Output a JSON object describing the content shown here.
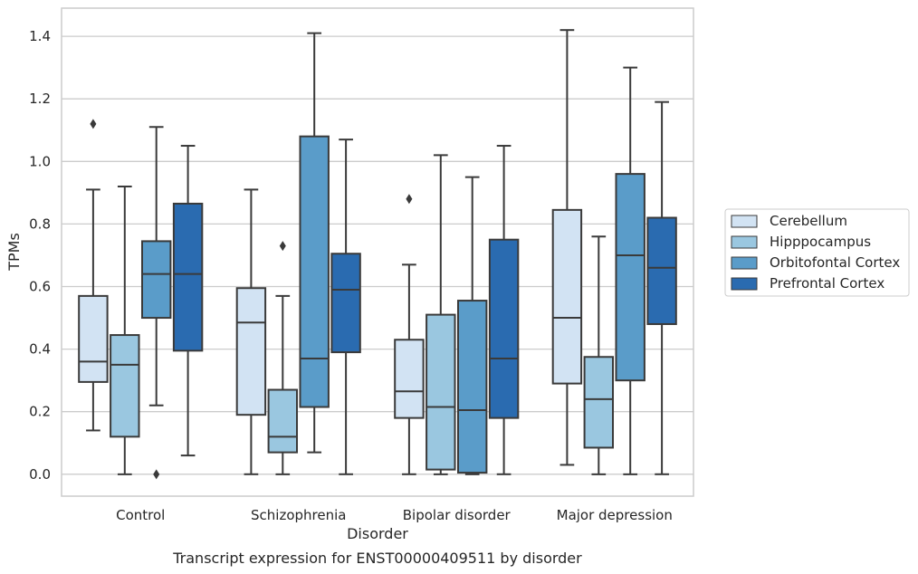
{
  "chart_data": {
    "type": "boxplot",
    "title": "Transcript expression for ENST00000409511 by disorder",
    "xlabel": "Disorder",
    "ylabel": "TPMs",
    "ylim": [
      -0.07,
      1.49
    ],
    "yticks": [
      "0.0",
      "0.2",
      "0.4",
      "0.6",
      "0.8",
      "1.0",
      "1.2",
      "1.4"
    ],
    "grid": true,
    "legend_position": "right",
    "categories": [
      "Control",
      "Schizophrenia",
      "Bipolar disorder",
      "Major depression"
    ],
    "series": [
      {
        "name": "Cerebellum",
        "color": "#d2e3f3",
        "boxes": [
          {
            "whislo": 0.14,
            "q1": 0.295,
            "med": 0.36,
            "q3": 0.57,
            "whishi": 0.91,
            "fliers": [
              1.12
            ]
          },
          {
            "whislo": 0.0,
            "q1": 0.19,
            "med": 0.485,
            "q3": 0.595,
            "whishi": 0.91,
            "fliers": []
          },
          {
            "whislo": 0.0,
            "q1": 0.18,
            "med": 0.265,
            "q3": 0.43,
            "whishi": 0.67,
            "fliers": [
              0.88
            ]
          },
          {
            "whislo": 0.03,
            "q1": 0.29,
            "med": 0.5,
            "q3": 0.845,
            "whishi": 1.42,
            "fliers": []
          }
        ]
      },
      {
        "name": "Hipppocampus",
        "color": "#9ac7e0",
        "boxes": [
          {
            "whislo": 0.0,
            "q1": 0.12,
            "med": 0.35,
            "q3": 0.445,
            "whishi": 0.92,
            "fliers": []
          },
          {
            "whislo": 0.0,
            "q1": 0.07,
            "med": 0.12,
            "q3": 0.27,
            "whishi": 0.57,
            "fliers": [
              0.73
            ]
          },
          {
            "whislo": 0.0,
            "q1": 0.015,
            "med": 0.215,
            "q3": 0.51,
            "whishi": 1.02,
            "fliers": []
          },
          {
            "whislo": 0.0,
            "q1": 0.085,
            "med": 0.24,
            "q3": 0.375,
            "whishi": 0.76,
            "fliers": []
          }
        ]
      },
      {
        "name": "Orbitofontal Cortex",
        "color": "#5a9cc9",
        "boxes": [
          {
            "whislo": 0.22,
            "q1": 0.5,
            "med": 0.64,
            "q3": 0.745,
            "whishi": 1.11,
            "fliers": [
              0.0
            ]
          },
          {
            "whislo": 0.07,
            "q1": 0.215,
            "med": 0.37,
            "q3": 1.08,
            "whishi": 1.41,
            "fliers": []
          },
          {
            "whislo": 0.0,
            "q1": 0.005,
            "med": 0.205,
            "q3": 0.555,
            "whishi": 0.95,
            "fliers": []
          },
          {
            "whislo": 0.0,
            "q1": 0.3,
            "med": 0.7,
            "q3": 0.96,
            "whishi": 1.3,
            "fliers": []
          }
        ]
      },
      {
        "name": "Prefrontal Cortex",
        "color": "#2a6bb0",
        "boxes": [
          {
            "whislo": 0.06,
            "q1": 0.395,
            "med": 0.64,
            "q3": 0.865,
            "whishi": 1.05,
            "fliers": []
          },
          {
            "whislo": 0.0,
            "q1": 0.39,
            "med": 0.59,
            "q3": 0.705,
            "whishi": 1.07,
            "fliers": []
          },
          {
            "whislo": 0.0,
            "q1": 0.18,
            "med": 0.37,
            "q3": 0.75,
            "whishi": 1.05,
            "fliers": []
          },
          {
            "whislo": 0.0,
            "q1": 0.48,
            "med": 0.66,
            "q3": 0.82,
            "whishi": 1.19,
            "fliers": []
          }
        ]
      }
    ]
  }
}
